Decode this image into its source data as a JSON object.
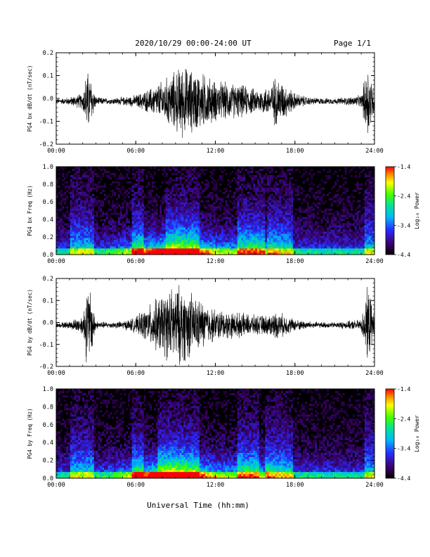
{
  "header": {
    "title": "2020/10/29  00:00-24:00 UT",
    "page": "Page 1/1"
  },
  "xaxis_title": "Universal Time (hh:mm)",
  "chart_data": [
    {
      "type": "line",
      "ylabel": "PG4 bx dB/dt (nT/sec)",
      "ylim": [
        -0.2,
        0.2
      ],
      "yticks": [
        "-0.2",
        "-0.1",
        "0.0",
        "0.1",
        "0.2"
      ],
      "xlim": [
        "00:00",
        "24:00"
      ],
      "xticks": [
        "00:00",
        "06:00",
        "12:00",
        "18:00",
        "24:00"
      ],
      "envelope": {
        "hours": [
          0,
          1,
          2,
          2.3,
          2.6,
          3,
          4,
          5,
          6,
          7,
          8,
          9,
          9.5,
          10,
          11,
          12,
          13,
          14,
          15,
          16,
          16.5,
          17,
          18,
          19,
          20,
          21,
          22,
          23,
          23.5,
          24
        ],
        "amplitude": [
          0.01,
          0.02,
          0.04,
          0.16,
          0.12,
          0.02,
          0.015,
          0.02,
          0.03,
          0.06,
          0.1,
          0.15,
          0.18,
          0.16,
          0.14,
          0.1,
          0.09,
          0.08,
          0.06,
          0.07,
          0.12,
          0.1,
          0.04,
          0.02,
          0.015,
          0.015,
          0.02,
          0.03,
          0.2,
          0.05
        ]
      },
      "color": "#000000"
    },
    {
      "type": "heatmap",
      "ylabel": "PG4 bx Freq (Hz)",
      "ylim": [
        0.0,
        1.0
      ],
      "yticks": [
        "0.0",
        "0.2",
        "0.4",
        "0.6",
        "0.8",
        "1.0"
      ],
      "xlim": [
        "00:00",
        "24:00"
      ],
      "xticks": [
        "00:00",
        "06:00",
        "12:00",
        "18:00",
        "24:00"
      ],
      "colorbar": {
        "label": "Log₁₀ Power",
        "ticks": [
          "-1.4",
          "-2.4",
          "-3.4",
          "-4.4"
        ],
        "range": [
          -4.4,
          -1.4
        ]
      },
      "active_bands_hours": [
        [
          1.4,
          1.8
        ],
        [
          2.2,
          2.6
        ],
        [
          6.0,
          6.3
        ],
        [
          8.5,
          10.5
        ],
        [
          14.0,
          15.5
        ],
        [
          16.2,
          17.6
        ],
        [
          23.5,
          24.0
        ]
      ]
    },
    {
      "type": "line",
      "ylabel": "PG4 by dB/dt (nT/sec)",
      "ylim": [
        -0.2,
        0.2
      ],
      "yticks": [
        "-0.2",
        "-0.1",
        "0.0",
        "0.1",
        "0.2"
      ],
      "xlim": [
        "00:00",
        "24:00"
      ],
      "xticks": [
        "00:00",
        "06:00",
        "12:00",
        "18:00",
        "24:00"
      ],
      "envelope": {
        "hours": [
          0,
          1,
          2,
          2.3,
          2.6,
          3,
          4,
          5,
          6,
          7,
          8,
          9,
          9.5,
          10,
          11,
          12,
          13,
          14,
          15,
          16,
          16.5,
          17,
          18,
          19,
          20,
          21,
          22,
          23,
          23.5,
          24
        ],
        "amplitude": [
          0.01,
          0.02,
          0.05,
          0.2,
          0.18,
          0.02,
          0.015,
          0.02,
          0.04,
          0.1,
          0.16,
          0.2,
          0.2,
          0.17,
          0.12,
          0.08,
          0.07,
          0.06,
          0.05,
          0.05,
          0.07,
          0.06,
          0.03,
          0.02,
          0.015,
          0.015,
          0.02,
          0.03,
          0.2,
          0.05
        ]
      },
      "color": "#000000"
    },
    {
      "type": "heatmap",
      "ylabel": "PG4 by Freq (Hz)",
      "ylim": [
        0.0,
        1.0
      ],
      "yticks": [
        "0.0",
        "0.2",
        "0.4",
        "0.6",
        "0.8",
        "1.0"
      ],
      "xlim": [
        "00:00",
        "24:00"
      ],
      "xticks": [
        "00:00",
        "06:00",
        "12:00",
        "18:00",
        "24:00"
      ],
      "colorbar": {
        "label": "Log₁₀ Power",
        "ticks": [
          "-1.4",
          "-2.4",
          "-3.4",
          "-4.4"
        ],
        "range": [
          -4.4,
          -1.4
        ]
      },
      "active_bands_hours": [
        [
          1.4,
          1.8
        ],
        [
          2.2,
          2.6
        ],
        [
          6.0,
          6.3
        ],
        [
          8.0,
          10.5
        ],
        [
          14.0,
          15.0
        ],
        [
          16.0,
          17.5
        ],
        [
          23.5,
          24.0
        ]
      ]
    }
  ]
}
